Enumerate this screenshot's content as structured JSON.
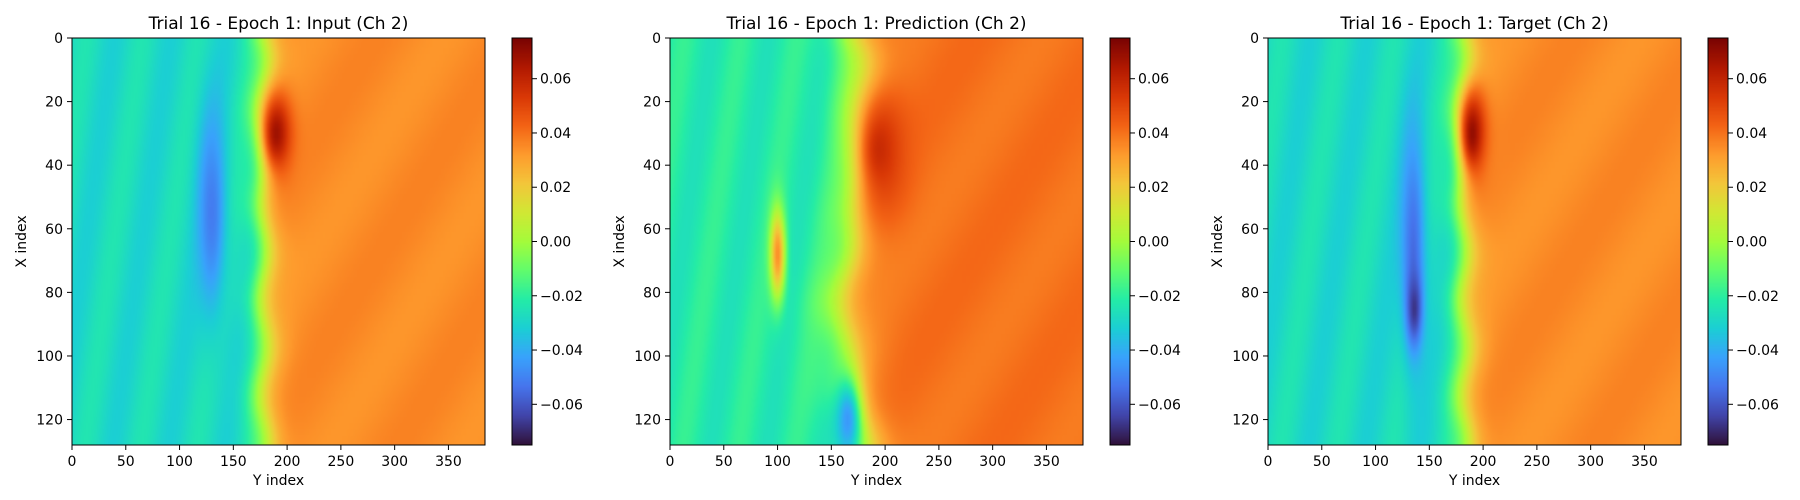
{
  "figure": {
    "background": "#ffffff"
  },
  "colormap": {
    "name": "turbo",
    "stops": [
      "#30123b",
      "#4145ab",
      "#4675ed",
      "#39a2fc",
      "#1bcfd4",
      "#24eca6",
      "#61fc6c",
      "#a4fc3b",
      "#d1e834",
      "#f3c63a",
      "#fe9b2d",
      "#f36315",
      "#d93806",
      "#b11901",
      "#7a0402"
    ]
  },
  "chart_data": [
    {
      "type": "heatmap",
      "title": "Trial 16 - Epoch 1: Input (Ch 2)",
      "xlabel": "Y index",
      "ylabel": "X index",
      "xlim": [
        0,
        384
      ],
      "ylim": [
        128,
        0
      ],
      "xticks": [
        0,
        50,
        100,
        150,
        200,
        250,
        300,
        350
      ],
      "yticks": [
        0,
        20,
        40,
        60,
        80,
        100,
        120
      ],
      "colorbar": {
        "min": -0.075,
        "max": 0.075,
        "ticks": [
          "0.06",
          "0.04",
          "0.02",
          "0.00",
          "−0.02",
          "−0.04",
          "−0.06"
        ],
        "tick_values": [
          0.06,
          0.04,
          0.02,
          0.0,
          -0.02,
          -0.04,
          -0.06
        ]
      },
      "field": {
        "left_value": -0.028,
        "right_value": 0.035,
        "front_y": 178,
        "front_skew": 0,
        "front_sharpness": 7,
        "features": [
          {
            "y": 130,
            "x": 55,
            "sy": 9,
            "sx": 22,
            "value": -0.052
          },
          {
            "y": 190,
            "x": 30,
            "sy": 10,
            "sx": 9,
            "value": 0.068
          }
        ]
      }
    },
    {
      "type": "heatmap",
      "title": "Trial 16 - Epoch 1: Prediction (Ch 2)",
      "xlabel": "Y index",
      "ylabel": "X index",
      "xlim": [
        0,
        384
      ],
      "ylim": [
        128,
        0
      ],
      "xticks": [
        0,
        50,
        100,
        150,
        200,
        250,
        300,
        350
      ],
      "yticks": [
        0,
        20,
        40,
        60,
        80,
        100,
        120
      ],
      "colorbar": {
        "min": -0.075,
        "max": 0.075,
        "ticks": [
          "0.06",
          "0.04",
          "0.02",
          "0.00",
          "−0.02",
          "−0.04",
          "−0.06"
        ],
        "tick_values": [
          0.06,
          0.04,
          0.02,
          0.0,
          -0.02,
          -0.04,
          -0.06
        ]
      },
      "field": {
        "left_value": -0.022,
        "right_value": 0.04,
        "front_y": 172,
        "front_skew": 22,
        "front_sharpness": 11,
        "features": [
          {
            "y": 195,
            "x": 35,
            "sy": 18,
            "sx": 14,
            "value": 0.058
          },
          {
            "y": 165,
            "x": 120,
            "sy": 9,
            "sx": 10,
            "value": -0.045
          },
          {
            "y": 100,
            "x": 68,
            "sy": 5,
            "sx": 10,
            "value": 0.035
          }
        ]
      }
    },
    {
      "type": "heatmap",
      "title": "Trial 16 - Epoch 1: Target (Ch 2)",
      "xlabel": "Y index",
      "ylabel": "X index",
      "xlim": [
        0,
        384
      ],
      "ylim": [
        128,
        0
      ],
      "xticks": [
        0,
        50,
        100,
        150,
        200,
        250,
        300,
        350
      ],
      "yticks": [
        0,
        20,
        40,
        60,
        80,
        100,
        120
      ],
      "colorbar": {
        "min": -0.075,
        "max": 0.075,
        "ticks": [
          "0.06",
          "0.04",
          "0.02",
          "0.00",
          "−0.02",
          "−0.04",
          "−0.06"
        ],
        "tick_values": [
          0.06,
          0.04,
          0.02,
          0.0,
          -0.02,
          -0.04,
          -0.06
        ]
      },
      "field": {
        "left_value": -0.028,
        "right_value": 0.035,
        "front_y": 182,
        "front_skew": 0,
        "front_sharpness": 7,
        "features": [
          {
            "y": 135,
            "x": 65,
            "sy": 8,
            "sx": 25,
            "value": -0.055
          },
          {
            "y": 136,
            "x": 85,
            "sy": 5,
            "sx": 8,
            "value": -0.068
          },
          {
            "y": 190,
            "x": 30,
            "sy": 9,
            "sx": 10,
            "value": 0.07
          }
        ]
      }
    }
  ]
}
